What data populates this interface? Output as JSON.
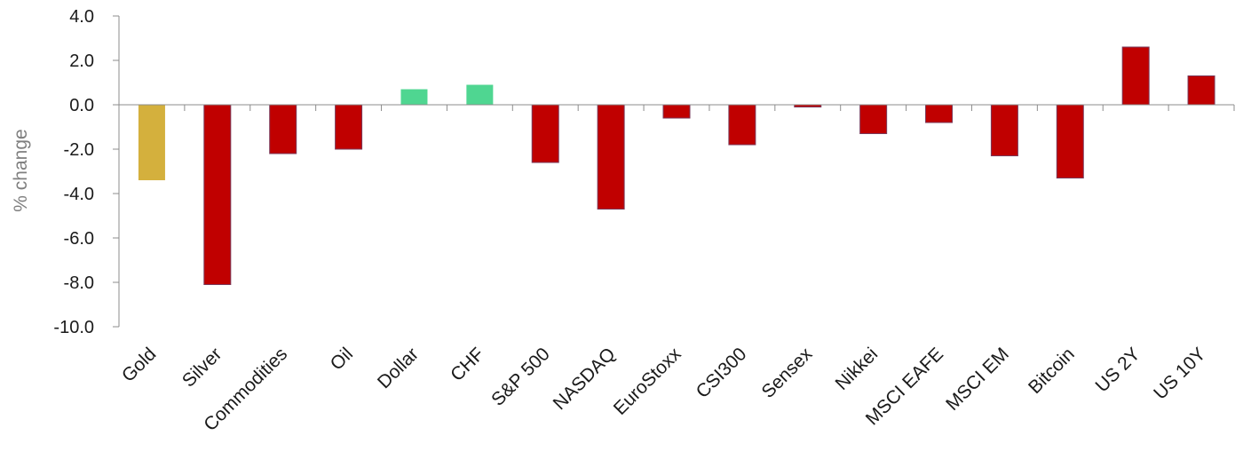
{
  "chart_data": {
    "type": "bar",
    "title": "",
    "xlabel": "",
    "ylabel": "% change",
    "ylim": [
      -10.0,
      4.0
    ],
    "yticks": [
      4.0,
      2.0,
      0.0,
      -2.0,
      -4.0,
      -6.0,
      -8.0,
      -10.0
    ],
    "ytick_labels": [
      "4.0",
      "2.0",
      "0.0",
      "-2.0",
      "-4.0",
      "-6.0",
      "-8.0",
      "-10.0"
    ],
    "grid": false,
    "legend": "none",
    "categories": [
      "Gold",
      "Silver",
      "Commodities",
      "Oil",
      "Dollar",
      "CHF",
      "S&P 500",
      "NASDAQ",
      "EuroStoxx",
      "CSI300",
      "Sensex",
      "Nikkei",
      "MSCI EAFE",
      "MSCI EM",
      "Bitcoin",
      "US 2Y",
      "US 10Y"
    ],
    "values": [
      -3.4,
      -8.1,
      -2.2,
      -2.0,
      0.7,
      0.9,
      -2.6,
      -4.7,
      -0.6,
      -1.8,
      -0.1,
      -1.3,
      -0.8,
      -2.3,
      -3.3,
      2.6,
      1.3
    ],
    "bar_colors": [
      "#d4b03d",
      "#c00000",
      "#c00000",
      "#c00000",
      "#4fd691",
      "#4fd691",
      "#c00000",
      "#c00000",
      "#c00000",
      "#c00000",
      "#c00000",
      "#c00000",
      "#c00000",
      "#c00000",
      "#c00000",
      "#c00000",
      "#c00000"
    ]
  }
}
